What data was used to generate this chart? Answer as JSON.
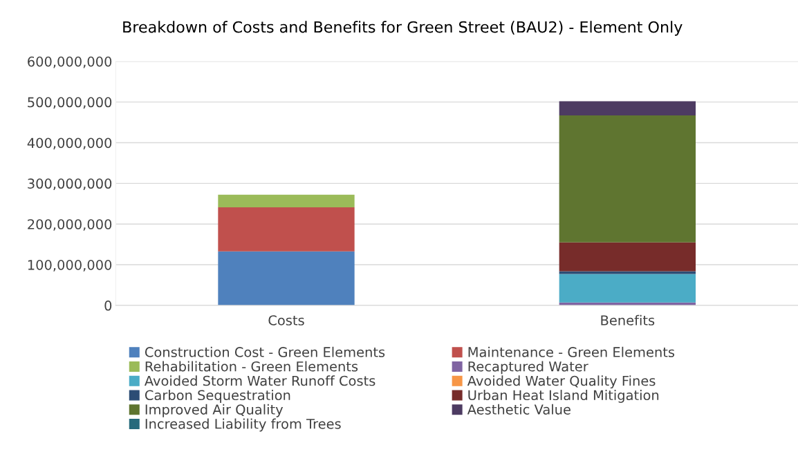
{
  "chart_data": {
    "type": "bar",
    "title": "Breakdown of Costs and Benefits for Green Street (BAU2) - Element Only",
    "categories": [
      "Costs",
      "Benefits"
    ],
    "stacked": true,
    "legend": "bottom",
    "grid": "y",
    "ylim": [
      0,
      600000000
    ],
    "yticks": [
      {
        "value": 0,
        "label": "0"
      },
      {
        "value": 100000000,
        "label": "100,000,000"
      },
      {
        "value": 200000000,
        "label": "200,000,000"
      },
      {
        "value": 300000000,
        "label": "300,000,000"
      },
      {
        "value": 400000000,
        "label": "400,000,000"
      },
      {
        "value": 500000000,
        "label": "500,000,000"
      },
      {
        "value": 600000000,
        "label": "600,000,000"
      }
    ],
    "series": [
      {
        "name": "Construction Cost - Green Elements",
        "color": "#4f81bd",
        "values": [
          133000000,
          null
        ]
      },
      {
        "name": "Maintenance - Green Elements",
        "color": "#c0504d",
        "values": [
          108000000,
          null
        ]
      },
      {
        "name": "Rehabilitation - Green Elements",
        "color": "#9bbb59",
        "values": [
          31000000,
          null
        ]
      },
      {
        "name": "Recaptured Water",
        "color": "#8064a2",
        "values": [
          null,
          7000000
        ]
      },
      {
        "name": "Avoided Storm Water Runoff Costs",
        "color": "#4bacc6",
        "values": [
          null,
          70000000
        ]
      },
      {
        "name": "Avoided Water Quality Fines",
        "color": "#f79646",
        "values": [
          null,
          0
        ]
      },
      {
        "name": "Carbon Sequestration",
        "color": "#2c4d75",
        "values": [
          null,
          7000000
        ]
      },
      {
        "name": "Urban Heat Island Mitigation",
        "color": "#772c2a",
        "values": [
          null,
          71000000
        ]
      },
      {
        "name": "Improved Air Quality",
        "color": "#5f7530",
        "values": [
          null,
          312000000
        ]
      },
      {
        "name": "Aesthetic Value",
        "color": "#4d3b62",
        "values": [
          null,
          35000000
        ]
      },
      {
        "name": "Increased Liability from Trees",
        "color": "#276a7c",
        "values": [
          null,
          0
        ]
      }
    ]
  }
}
